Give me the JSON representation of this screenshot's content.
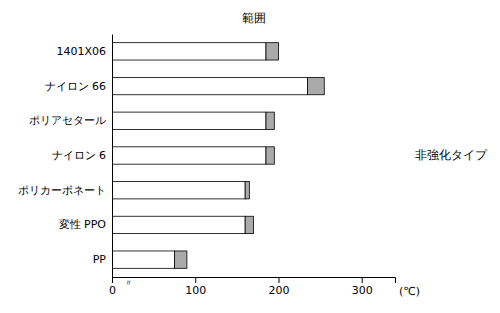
{
  "chart_data": {
    "type": "bar",
    "orientation": "horizontal",
    "stacked": true,
    "title": "範囲",
    "xlabel": "(℃)",
    "annotations": [
      "非強化タイプ",
      "〃"
    ],
    "categories": [
      "PP",
      "変性 PPO",
      "ポリカーボネート",
      "ナイロン 6",
      "ポリアセタール",
      "ナイロン 66",
      "1401X06"
    ],
    "series": [
      {
        "color": "#ffffff",
        "values": [
          75,
          160,
          160,
          185,
          185,
          235,
          185
        ]
      },
      {
        "color": "#aaaaaa",
        "values": [
          15,
          10,
          5,
          10,
          10,
          20,
          15
        ]
      }
    ],
    "xlim": [
      0,
      340
    ],
    "xticks": [
      0,
      100,
      200,
      300
    ],
    "grid": false
  }
}
